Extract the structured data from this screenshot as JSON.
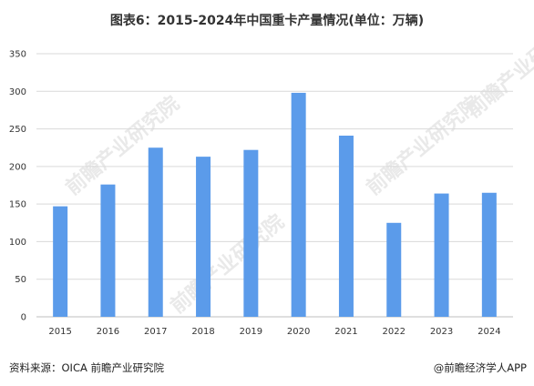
{
  "chart_data": {
    "type": "bar",
    "title": "图表6：2015-2024年中国重卡产量情况(单位：万辆)",
    "categories": [
      "2015",
      "2016",
      "2017",
      "2018",
      "2019",
      "2020",
      "2021",
      "2022",
      "2023",
      "2024"
    ],
    "values": [
      147,
      176,
      225,
      213,
      222,
      298,
      241,
      125,
      164,
      165
    ],
    "ylim": [
      0,
      350
    ],
    "yticks": [
      0,
      50,
      100,
      150,
      200,
      250,
      300,
      350
    ],
    "xlabel": "",
    "ylabel": "",
    "grid": true,
    "bar_color": "#5b9bea",
    "grid_color": "#d9d9d9"
  },
  "footer": {
    "source": "资料来源：OICA 前瞻产业研究院",
    "credit": "@前瞻经济学人APP"
  },
  "watermark": {
    "text": "前瞻产业研究院"
  }
}
